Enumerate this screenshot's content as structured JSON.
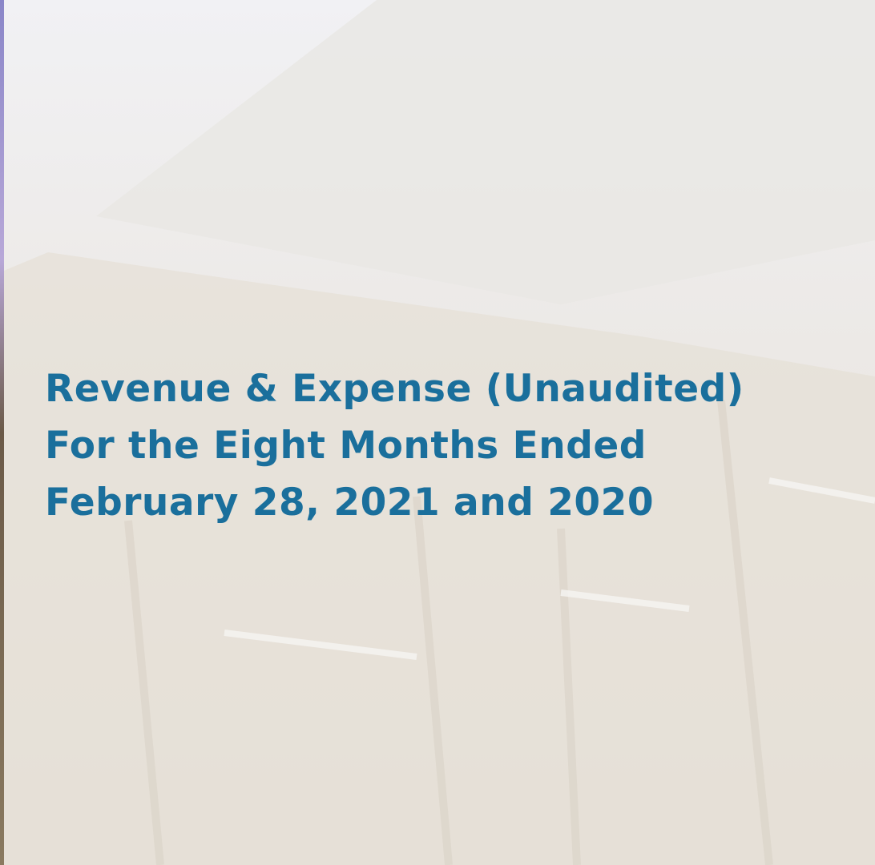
{
  "title": {
    "lines": [
      "Revenue & Expense (Unaudited)",
      "For the Eight Months Ended",
      "February 28, 2021 and 2020"
    ]
  }
}
